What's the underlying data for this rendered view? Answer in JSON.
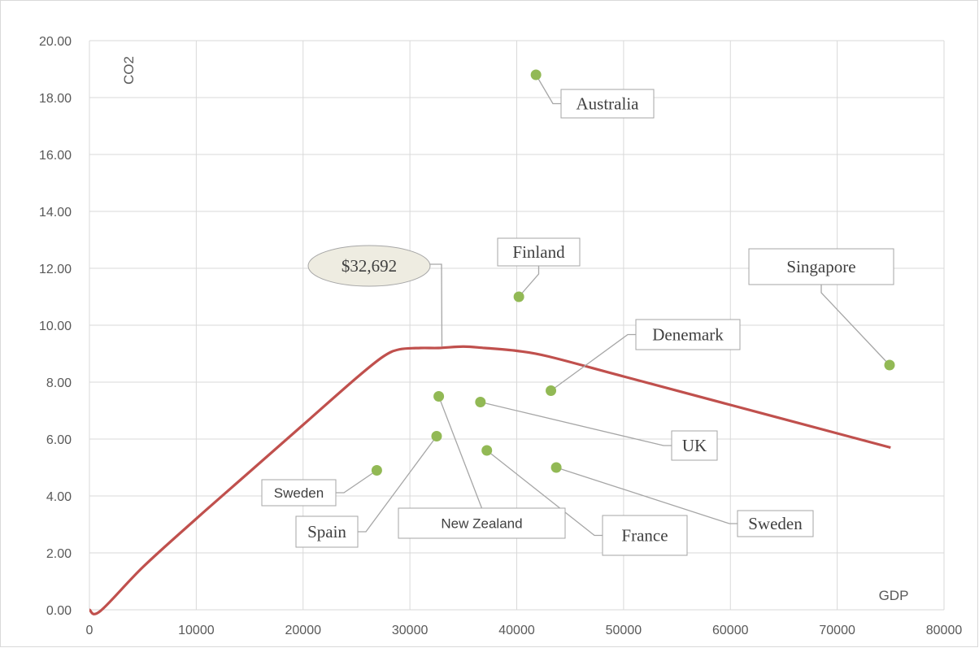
{
  "chart_data": {
    "type": "scatter",
    "xlim": [
      0,
      80000
    ],
    "ylim": [
      0,
      20
    ],
    "x_ticks": [
      "0",
      "10000",
      "20000",
      "30000",
      "40000",
      "50000",
      "60000",
      "70000",
      "80000"
    ],
    "y_ticks": [
      "0.00",
      "2.00",
      "4.00",
      "6.00",
      "8.00",
      "10.00",
      "12.00",
      "14.00",
      "16.00",
      "18.00",
      "20.00"
    ],
    "xlabel": "GDP",
    "ylabel": "CO2",
    "grid": true,
    "points_color": "#92b955",
    "curve_color": "#c0504d",
    "points": [
      {
        "label": "Australia",
        "x": 41800,
        "y": 18.8
      },
      {
        "label": "Finland",
        "x": 40200,
        "y": 11.0
      },
      {
        "label": "Singapore",
        "x": 74900,
        "y": 8.6
      },
      {
        "label": "Denemark",
        "x": 43200,
        "y": 7.7
      },
      {
        "label": "UK",
        "x": 36600,
        "y": 7.3
      },
      {
        "label": "New Zealand",
        "x": 32700,
        "y": 7.5
      },
      {
        "label": "Spain",
        "x": 32500,
        "y": 6.1
      },
      {
        "label": "France",
        "x": 37200,
        "y": 5.6
      },
      {
        "label": "Sweden",
        "x": 43700,
        "y": 5.0
      },
      {
        "label": "Sweden",
        "x": 26900,
        "y": 4.9
      }
    ],
    "curve": [
      {
        "x": 0,
        "y": 0.0
      },
      {
        "x": 1000,
        "y": -0.05
      },
      {
        "x": 5000,
        "y": 1.5
      },
      {
        "x": 10000,
        "y": 3.2
      },
      {
        "x": 15000,
        "y": 4.85
      },
      {
        "x": 20000,
        "y": 6.5
      },
      {
        "x": 25000,
        "y": 8.15
      },
      {
        "x": 27500,
        "y": 8.9
      },
      {
        "x": 29000,
        "y": 9.15
      },
      {
        "x": 31000,
        "y": 9.2
      },
      {
        "x": 32692,
        "y": 9.2
      },
      {
        "x": 35000,
        "y": 9.25
      },
      {
        "x": 37000,
        "y": 9.2
      },
      {
        "x": 40000,
        "y": 9.1
      },
      {
        "x": 43000,
        "y": 8.9
      },
      {
        "x": 50000,
        "y": 8.2
      },
      {
        "x": 60000,
        "y": 7.2
      },
      {
        "x": 70000,
        "y": 6.2
      },
      {
        "x": 75000,
        "y": 5.7
      }
    ],
    "callout": {
      "label": "$32,692",
      "x": 32692,
      "y": 9.2,
      "fill": "#eeece1"
    }
  }
}
